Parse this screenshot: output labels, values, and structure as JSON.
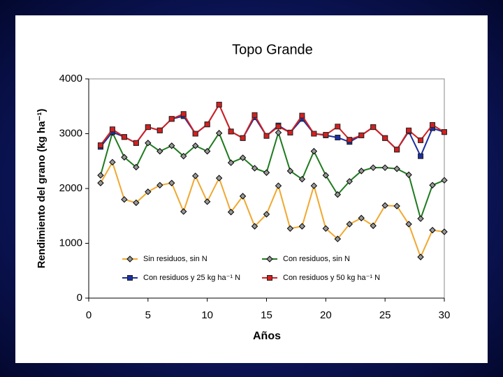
{
  "chart_data": {
    "type": "line",
    "title": "Topo Grande",
    "x_label": "Años",
    "y_label": "Rendimiento del grano (kg ha⁻¹)",
    "x": [
      1,
      2,
      3,
      4,
      5,
      6,
      7,
      8,
      9,
      10,
      11,
      12,
      13,
      14,
      15,
      16,
      17,
      18,
      19,
      20,
      21,
      22,
      23,
      24,
      25,
      26,
      27,
      28,
      29,
      30
    ],
    "series": [
      {
        "name": "Sin residuos, sin N",
        "color": "#f0a830",
        "marker": "diamond",
        "values": [
          2100,
          2480,
          1800,
          1740,
          1940,
          2060,
          2100,
          1580,
          2230,
          1760,
          2190,
          1570,
          1860,
          1310,
          1530,
          2050,
          1270,
          1310,
          2050,
          1270,
          1080,
          1350,
          1460,
          1320,
          1690,
          1680,
          1350,
          750,
          1240,
          1210
        ]
      },
      {
        "name": "Con residuos, sin N",
        "color": "#1e7a1e",
        "marker": "diamond",
        "values": [
          2240,
          3020,
          2570,
          2390,
          2830,
          2680,
          2780,
          2590,
          2780,
          2680,
          3010,
          2470,
          2560,
          2370,
          2290,
          3020,
          2320,
          2170,
          2680,
          2240,
          1890,
          2130,
          2320,
          2380,
          2380,
          2360,
          2250,
          1450,
          2060,
          2150
        ]
      },
      {
        "name": "Con residuos y 25 kg ha⁻¹ N",
        "color": "#1a2fa0",
        "marker": "square",
        "values": [
          2760,
          3030,
          2940,
          2830,
          3120,
          3060,
          3270,
          3320,
          3000,
          3170,
          3530,
          3040,
          2920,
          3300,
          2960,
          3150,
          3020,
          3270,
          3000,
          2970,
          2930,
          2850,
          2970,
          3120,
          2920,
          2710,
          3040,
          2590,
          3100,
          3030
        ]
      },
      {
        "name": "Con residuos y 50 kg ha⁻¹ N",
        "color": "#d42020",
        "marker": "square",
        "values": [
          2790,
          3080,
          2940,
          2830,
          3120,
          3060,
          3270,
          3360,
          3000,
          3170,
          3530,
          3040,
          2920,
          3340,
          2960,
          3130,
          3020,
          3330,
          3000,
          2980,
          3130,
          2890,
          2970,
          3120,
          2920,
          2710,
          3060,
          2880,
          3160,
          3030
        ]
      }
    ],
    "xlim": [
      0,
      30
    ],
    "xticks": [
      0,
      5,
      10,
      15,
      20,
      25,
      30
    ],
    "ylim": [
      0,
      4000
    ],
    "yticks": [
      0,
      1000,
      2000,
      3000,
      4000
    ],
    "grid": false
  }
}
